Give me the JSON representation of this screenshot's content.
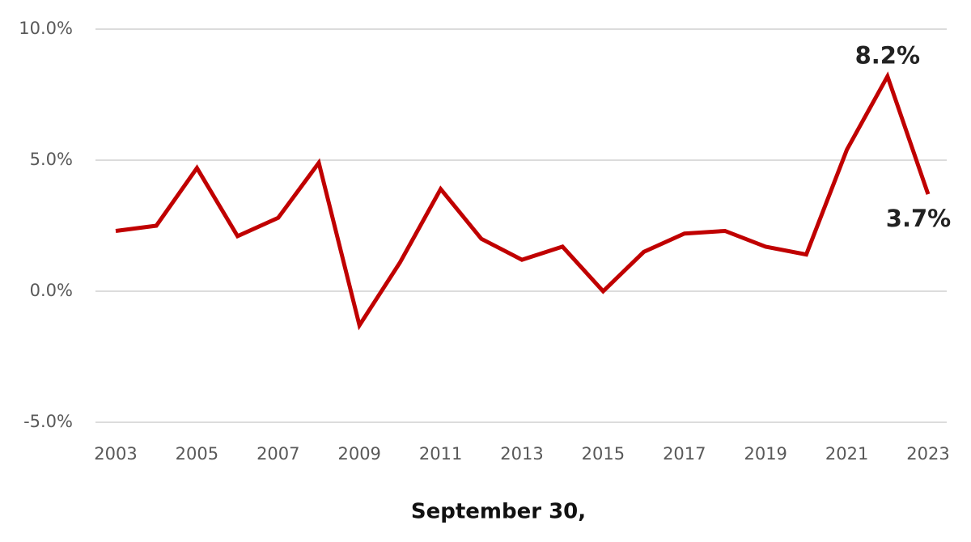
{
  "chart_data": {
    "type": "line",
    "xlabel": "September 30,",
    "x": [
      2003,
      2004,
      2005,
      2006,
      2007,
      2008,
      2009,
      2010,
      2011,
      2012,
      2013,
      2014,
      2015,
      2016,
      2017,
      2018,
      2019,
      2020,
      2021,
      2022,
      2023
    ],
    "values": [
      2.3,
      2.5,
      4.7,
      2.1,
      2.8,
      4.9,
      -1.3,
      1.1,
      3.9,
      2.0,
      1.2,
      1.7,
      0.0,
      1.5,
      2.2,
      2.3,
      1.7,
      1.4,
      5.4,
      8.2,
      3.7
    ],
    "value_labels": [
      null,
      null,
      null,
      null,
      null,
      null,
      null,
      null,
      null,
      null,
      null,
      null,
      null,
      null,
      null,
      null,
      null,
      null,
      null,
      "8.2%",
      "3.7%"
    ],
    "color": "#c00000",
    "xlim": [
      2003,
      2023
    ],
    "xticks": [
      2003,
      2005,
      2007,
      2009,
      2011,
      2013,
      2015,
      2017,
      2019,
      2021,
      2023
    ],
    "ylim": [
      -5,
      10
    ],
    "yticks": [
      {
        "value": -5,
        "label": "-5.0%"
      },
      {
        "value": 0,
        "label": "0.0%"
      },
      {
        "value": 5,
        "label": "5.0%"
      },
      {
        "value": 10,
        "label": "10.0%"
      }
    ],
    "grid": true
  }
}
